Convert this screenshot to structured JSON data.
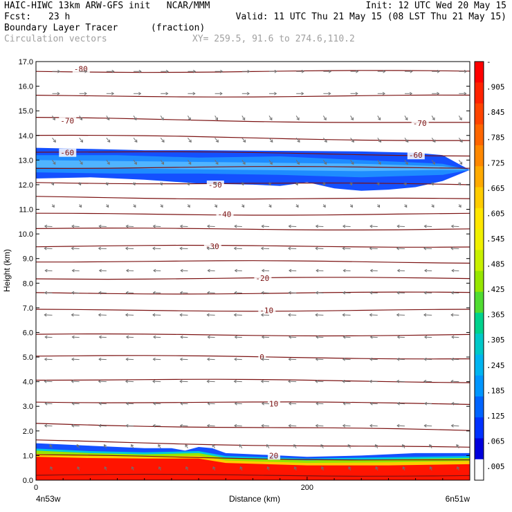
{
  "header": {
    "line1_left": "HAIC-HIWC 13km ARW-GFS init   NCAR/MMM",
    "line1_right": "Init: 12 UTC Wed 20 May 15",
    "fcst_label": "Fcst:",
    "fcst_value": "23 h",
    "valid": "Valid: 11 UTC Thu 21 May 15 (08 LST Thu 21 May 15)",
    "field_name": "Boundary Layer Tracer",
    "field_units": "(fraction)",
    "vector_label": "Circulation vectors",
    "xsec": "XY= 259.5, 91.6 to 274.6,110.2"
  },
  "chart_data": {
    "type": "heatmap",
    "ylabel": "Height (km)",
    "xlabel": "Distance (km)",
    "ylim": [
      0,
      17
    ],
    "xlim": [
      0,
      320
    ],
    "y_ticks": [
      "0.0",
      "1.0",
      "2.0",
      "3.0",
      "4.0",
      "5.0",
      "6.0",
      "7.0",
      "8.0",
      "9.0",
      "10.0",
      "11.0",
      "12.0",
      "13.0",
      "14.0",
      "15.0",
      "16.0",
      "17.0"
    ],
    "x_ticks": [
      {
        "value": 0,
        "label": "0"
      },
      {
        "value": 200,
        "label": "200"
      }
    ],
    "left_end_label": "4n53w",
    "right_end_label": "6n51w",
    "isotherm_labels": [
      {
        "text": "-80",
        "x": 28,
        "y": 16.7
      },
      {
        "text": "-70",
        "x": 18,
        "y": 14.6
      },
      {
        "text": "-70",
        "x": 278,
        "y": 14.5
      },
      {
        "text": "-60",
        "x": 18,
        "y": 13.3
      },
      {
        "text": "-60",
        "x": 275,
        "y": 13.2
      },
      {
        "text": "-50",
        "x": 127,
        "y": 12.0
      },
      {
        "text": "-40",
        "x": 134,
        "y": 10.8
      },
      {
        "text": "-30",
        "x": 125,
        "y": 9.5
      },
      {
        "text": "-20",
        "x": 162,
        "y": 8.2
      },
      {
        "text": "-10",
        "x": 165,
        "y": 6.9
      },
      {
        "text": "0",
        "x": 165,
        "y": 5.0
      },
      {
        "text": "10",
        "x": 172,
        "y": 3.1
      },
      {
        "text": "20",
        "x": 172,
        "y": 1.0
      }
    ],
    "isotherm_heights_left": [
      0.2,
      1.0,
      1.6,
      2.3,
      3.2,
      4.1,
      5.05,
      5.9,
      6.9,
      7.6,
      8.2,
      8.9,
      9.5,
      10.2,
      10.8,
      11.5,
      12.1,
      12.7,
      13.35,
      14.0,
      14.7,
      15.6,
      16.6
    ],
    "isotherm_heights_right": [
      0.2,
      0.8,
      1.3,
      2.0,
      3.1,
      4.0,
      4.95,
      5.9,
      6.9,
      7.6,
      8.2,
      8.85,
      9.5,
      10.2,
      10.8,
      11.4,
      12.0,
      12.7,
      13.2,
      13.8,
      14.5,
      15.6,
      16.6
    ],
    "colorbar": {
      "labels": [
        "-",
        ".905",
        ".845",
        ".785",
        ".725",
        ".665",
        ".605",
        ".545",
        ".485",
        ".425",
        ".365",
        ".305",
        ".245",
        ".185",
        ".125",
        ".065",
        ".005"
      ],
      "colors": [
        "#ff0000",
        "#ff2200",
        "#ff4400",
        "#ff6600",
        "#ff8800",
        "#ffaa00",
        "#ffcc00",
        "#ffe600",
        "#f0f000",
        "#c8f000",
        "#96e600",
        "#50dc32",
        "#00d28c",
        "#00c8c8",
        "#00b4f0",
        "#0096ff",
        "#0064ff",
        "#0032ff",
        "#0000dc",
        "#ffffff"
      ]
    },
    "upper_layer": {
      "top": [
        [
          0,
          13.5
        ],
        [
          40,
          13.45
        ],
        [
          80,
          13.4
        ],
        [
          120,
          13.4
        ],
        [
          160,
          13.38
        ],
        [
          200,
          13.37
        ],
        [
          240,
          13.35
        ],
        [
          280,
          13.3
        ],
        [
          300,
          13.2
        ],
        [
          320,
          12.6
        ]
      ],
      "bottom": [
        [
          0,
          12.25
        ],
        [
          40,
          12.3
        ],
        [
          80,
          12.2
        ],
        [
          120,
          12.05
        ],
        [
          160,
          12.0
        ],
        [
          180,
          11.95
        ],
        [
          200,
          12.1
        ],
        [
          220,
          11.85
        ],
        [
          240,
          11.75
        ],
        [
          260,
          11.8
        ],
        [
          280,
          11.9
        ],
        [
          300,
          12.15
        ],
        [
          320,
          12.6
        ]
      ],
      "inner_top": [
        [
          0,
          13.2
        ],
        [
          60,
          13.2
        ],
        [
          120,
          13.1
        ],
        [
          180,
          13.15
        ],
        [
          240,
          13.0
        ],
        [
          300,
          12.85
        ],
        [
          320,
          12.6
        ]
      ],
      "inner_bottom": [
        [
          0,
          12.5
        ],
        [
          60,
          12.45
        ],
        [
          120,
          12.45
        ],
        [
          180,
          12.4
        ],
        [
          240,
          12.3
        ],
        [
          300,
          12.4
        ],
        [
          320,
          12.6
        ]
      ],
      "core_top": [
        [
          0,
          13.0
        ],
        [
          80,
          12.95
        ],
        [
          160,
          12.9
        ],
        [
          240,
          12.85
        ],
        [
          300,
          12.75
        ],
        [
          320,
          12.6
        ]
      ],
      "core_bottom": [
        [
          0,
          12.7
        ],
        [
          80,
          12.65
        ],
        [
          160,
          12.6
        ],
        [
          240,
          12.55
        ],
        [
          300,
          12.6
        ],
        [
          320,
          12.6
        ]
      ]
    },
    "boundary_layer": {
      "outer_top": [
        [
          0,
          1.5
        ],
        [
          20,
          1.45
        ],
        [
          40,
          1.4
        ],
        [
          60,
          1.35
        ],
        [
          80,
          1.3
        ],
        [
          100,
          1.3
        ],
        [
          110,
          1.2
        ],
        [
          120,
          1.35
        ],
        [
          130,
          1.3
        ],
        [
          140,
          1.1
        ],
        [
          160,
          1.05
        ],
        [
          200,
          0.95
        ],
        [
          240,
          1.0
        ],
        [
          280,
          1.1
        ],
        [
          320,
          1.1
        ]
      ],
      "mid_top": [
        [
          0,
          1.2
        ],
        [
          40,
          1.1
        ],
        [
          80,
          1.05
        ],
        [
          120,
          1.1
        ],
        [
          140,
          0.9
        ],
        [
          200,
          0.8
        ],
        [
          260,
          0.85
        ],
        [
          320,
          0.9
        ]
      ],
      "red_top": [
        [
          0,
          0.95
        ],
        [
          40,
          0.9
        ],
        [
          80,
          0.88
        ],
        [
          120,
          0.88
        ],
        [
          140,
          0.7
        ],
        [
          200,
          0.6
        ],
        [
          260,
          0.6
        ],
        [
          320,
          0.65
        ]
      ]
    }
  }
}
